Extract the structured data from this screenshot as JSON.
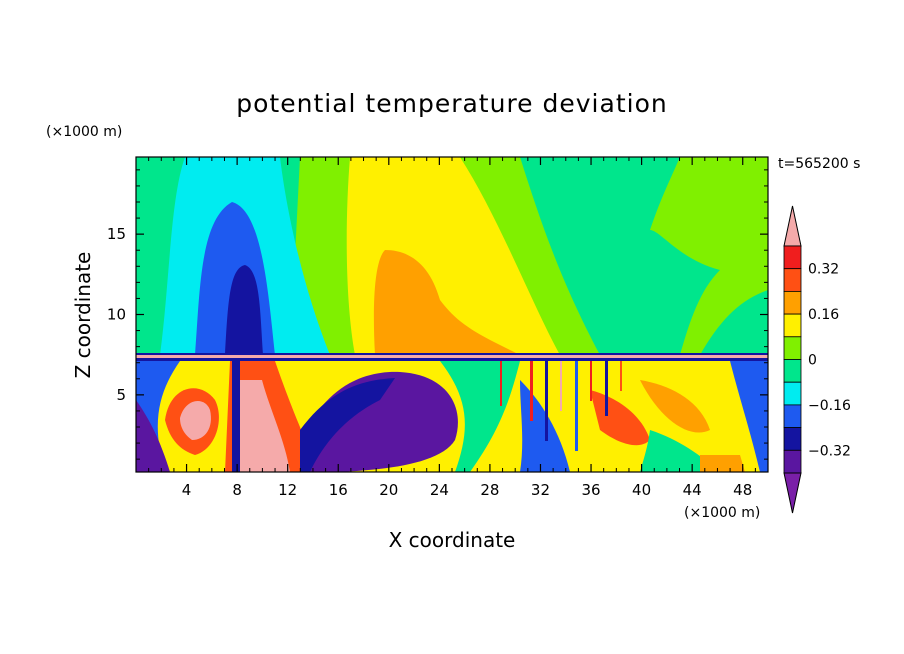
{
  "chart_data": {
    "type": "heatmap",
    "title": "potential temperature deviation",
    "time_label": "t=565200 s",
    "xlabel": "X coordinate",
    "ylabel": "Z coordinate",
    "x_unit": "(×1000 m)",
    "y_unit": "(×1000 m)",
    "xlim": [
      0,
      50
    ],
    "ylim": [
      0.2,
      19.8
    ],
    "x_ticks": [
      "4",
      "8",
      "12",
      "16",
      "20",
      "24",
      "28",
      "32",
      "36",
      "40",
      "44",
      "48"
    ],
    "x_tick_values": [
      4,
      8,
      12,
      16,
      20,
      24,
      28,
      32,
      36,
      40,
      44,
      48
    ],
    "y_ticks": [
      "5",
      "10",
      "15"
    ],
    "y_tick_values": [
      5,
      10,
      15
    ],
    "colorbar": {
      "labels": [
        "0.32",
        "0.16",
        "0",
        "−0.16",
        "−0.32"
      ],
      "label_values": [
        0.32,
        0.16,
        0,
        -0.16,
        -0.32
      ],
      "levels": [
        -0.4,
        -0.32,
        -0.24,
        -0.16,
        -0.08,
        0,
        0.08,
        0.16,
        0.24,
        0.32,
        0.4
      ],
      "colors": [
        "#7a1fa8",
        "#5a16a0",
        "#1414a0",
        "#1e5af0",
        "#00ecf0",
        "#00e68c",
        "#80f000",
        "#fff000",
        "#ffa000",
        "#ff5014",
        "#f01e1e",
        "#f5aaaa"
      ]
    }
  }
}
